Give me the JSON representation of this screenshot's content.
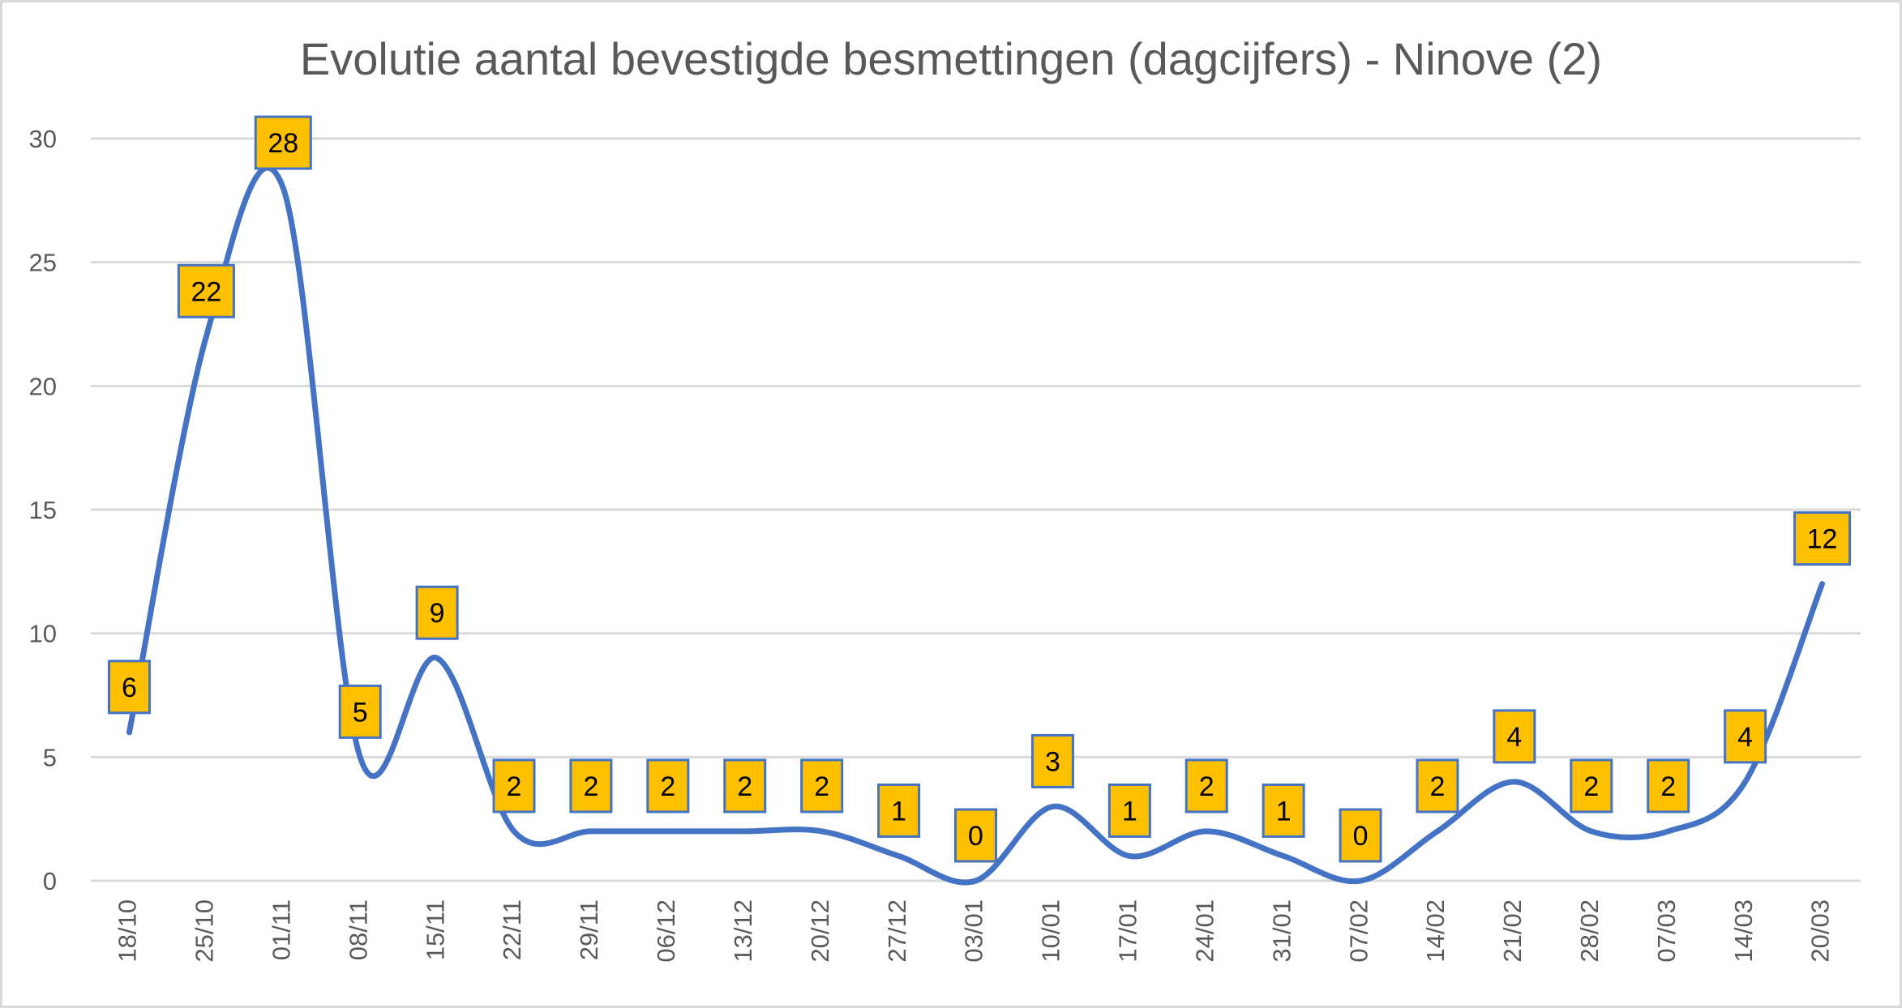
{
  "chart_data": {
    "type": "line",
    "title": "Evolutie aantal bevestigde besmettingen (dagcijfers) - Ninove (2)",
    "xlabel": "",
    "ylabel": "",
    "ylim": [
      0,
      30
    ],
    "yticks": [
      0,
      5,
      10,
      15,
      20,
      25,
      30
    ],
    "grid": true,
    "smooth": true,
    "categories": [
      "18/10",
      "25/10",
      "01/11",
      "08/11",
      "15/11",
      "22/11",
      "29/11",
      "06/12",
      "13/12",
      "20/12",
      "27/12",
      "03/01",
      "10/01",
      "17/01",
      "24/01",
      "31/01",
      "07/02",
      "14/02",
      "21/02",
      "28/02",
      "07/03",
      "14/03",
      "20/03"
    ],
    "series": [
      {
        "name": "Ninove",
        "values": [
          6,
          22,
          28,
          5,
          9,
          2,
          2,
          2,
          2,
          2,
          1,
          0,
          3,
          1,
          2,
          1,
          0,
          2,
          4,
          2,
          2,
          4,
          12
        ],
        "color": "#4472C4"
      }
    ],
    "data_labels": true,
    "label_fill": "#FFC000",
    "label_border": "#4472C4"
  }
}
